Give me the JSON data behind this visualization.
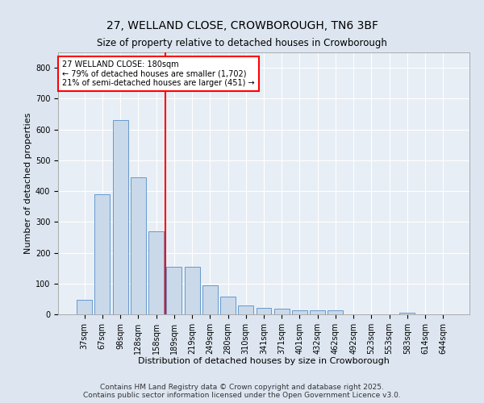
{
  "title": "27, WELLAND CLOSE, CROWBOROUGH, TN6 3BF",
  "subtitle": "Size of property relative to detached houses in Crowborough",
  "xlabel": "Distribution of detached houses by size in Crowborough",
  "ylabel": "Number of detached properties",
  "categories": [
    "37sqm",
    "67sqm",
    "98sqm",
    "128sqm",
    "158sqm",
    "189sqm",
    "219sqm",
    "249sqm",
    "280sqm",
    "310sqm",
    "341sqm",
    "371sqm",
    "401sqm",
    "432sqm",
    "462sqm",
    "492sqm",
    "523sqm",
    "553sqm",
    "583sqm",
    "614sqm",
    "644sqm"
  ],
  "values": [
    47,
    390,
    630,
    445,
    270,
    155,
    155,
    95,
    57,
    30,
    20,
    18,
    13,
    13,
    12,
    0,
    0,
    0,
    5,
    0,
    0
  ],
  "bar_color": "#c9d9ea",
  "bar_edge_color": "#6699cc",
  "vline_color": "red",
  "annotation_text": "27 WELLAND CLOSE: 180sqm\n← 79% of detached houses are smaller (1,702)\n21% of semi-detached houses are larger (451) →",
  "annotation_box_color": "white",
  "annotation_box_edge_color": "red",
  "ylim": [
    0,
    850
  ],
  "yticks": [
    0,
    100,
    200,
    300,
    400,
    500,
    600,
    700,
    800
  ],
  "footer_text": "Contains HM Land Registry data © Crown copyright and database right 2025.\nContains public sector information licensed under the Open Government Licence v3.0.",
  "background_color": "#dde6f0",
  "plot_background_color": "#e8eef5",
  "title_fontsize": 10,
  "axis_fontsize": 8,
  "tick_fontsize": 7,
  "footer_fontsize": 6.5
}
